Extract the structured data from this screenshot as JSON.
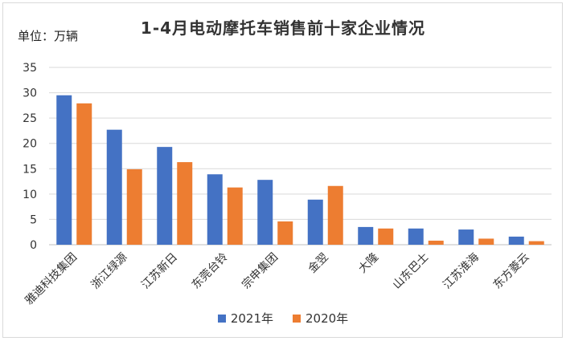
{
  "chart_data": {
    "type": "bar",
    "title": "1-4月电动摩托车销售前十家企业情况",
    "unit_label": "单位：万辆",
    "categories": [
      "雅迪科技集团",
      "浙江绿源",
      "江苏新日",
      "东莞台铃",
      "宗申集团",
      "金翌",
      "大隆",
      "山东巴士",
      "江苏淮海",
      "东方菱云"
    ],
    "series": [
      {
        "name": "2021年",
        "color": "#4472c4",
        "values": [
          29.5,
          22.7,
          19.3,
          13.9,
          12.8,
          8.9,
          3.5,
          3.2,
          3.0,
          1.6
        ]
      },
      {
        "name": "2020年",
        "color": "#ed7d31",
        "values": [
          27.9,
          14.9,
          16.3,
          11.3,
          4.6,
          11.6,
          3.2,
          0.8,
          1.2,
          0.7
        ]
      }
    ],
    "yticks": [
      "0",
      "5",
      "10",
      "15",
      "20",
      "25",
      "30",
      "35"
    ],
    "ylim": [
      0,
      35
    ],
    "grid": true,
    "legend_position": "bottom"
  }
}
